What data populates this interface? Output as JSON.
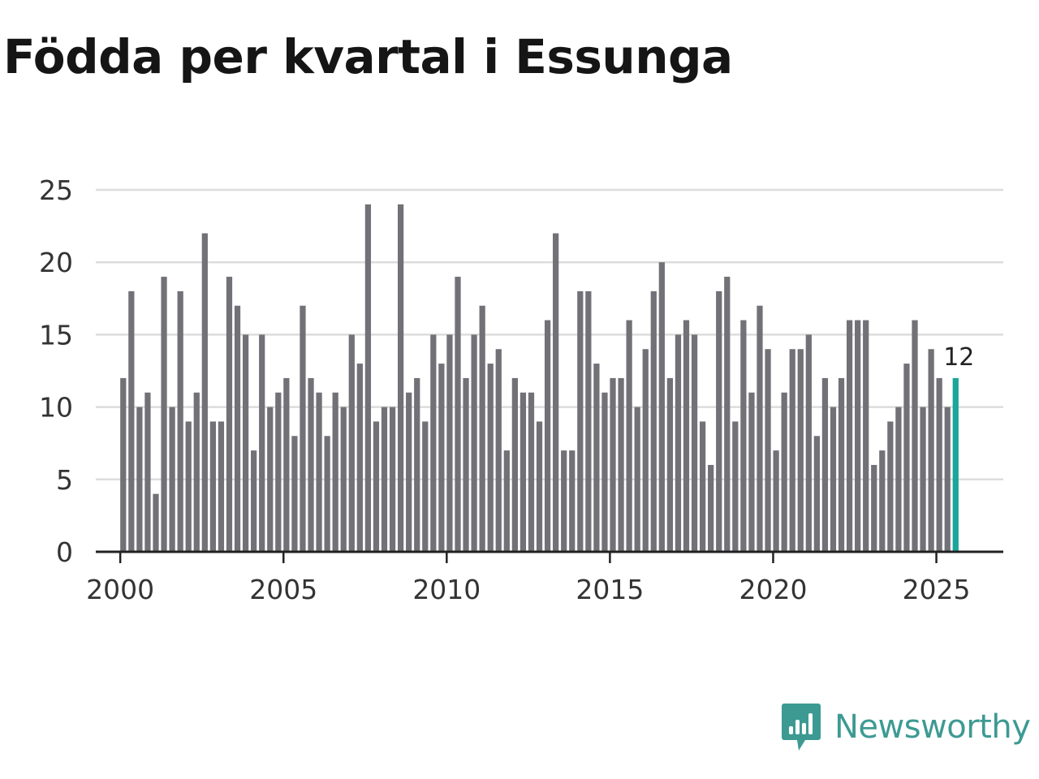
{
  "title": "Födda per kvartal i Essunga",
  "brand": "Newsworthy",
  "colors": {
    "bar": "#727177",
    "highlight": "#1ca59a",
    "grid": "#dcdcdc",
    "axis": "#222222",
    "brand": "#3d9a93"
  },
  "chart_data": {
    "type": "bar",
    "title": "Födda per kvartal i Essunga",
    "xlabel": "",
    "ylabel": "",
    "start_year": 2000,
    "periods_per_year": 4,
    "xlim": [
      1999.25,
      2027.05
    ],
    "ylim": [
      0,
      25
    ],
    "y_ticks": [
      0,
      5,
      10,
      15,
      20,
      25
    ],
    "x_ticks": [
      2000,
      2005,
      2010,
      2015,
      2020,
      2025
    ],
    "grid": true,
    "highlight_last": true,
    "last_value_label": "12",
    "values": [
      12,
      18,
      10,
      11,
      4,
      19,
      10,
      18,
      9,
      11,
      22,
      9,
      9,
      19,
      17,
      15,
      7,
      15,
      10,
      11,
      12,
      8,
      17,
      12,
      11,
      8,
      11,
      10,
      15,
      13,
      24,
      9,
      10,
      10,
      24,
      11,
      12,
      9,
      15,
      13,
      15,
      19,
      12,
      15,
      17,
      13,
      14,
      7,
      12,
      11,
      11,
      9,
      16,
      22,
      7,
      7,
      18,
      18,
      13,
      11,
      12,
      12,
      16,
      10,
      14,
      18,
      20,
      12,
      15,
      16,
      15,
      9,
      6,
      18,
      19,
      9,
      16,
      11,
      17,
      14,
      7,
      11,
      14,
      14,
      15,
      8,
      12,
      10,
      12,
      16,
      16,
      16,
      6,
      7,
      9,
      10,
      13,
      16,
      10,
      14,
      12,
      10,
      12
    ]
  }
}
